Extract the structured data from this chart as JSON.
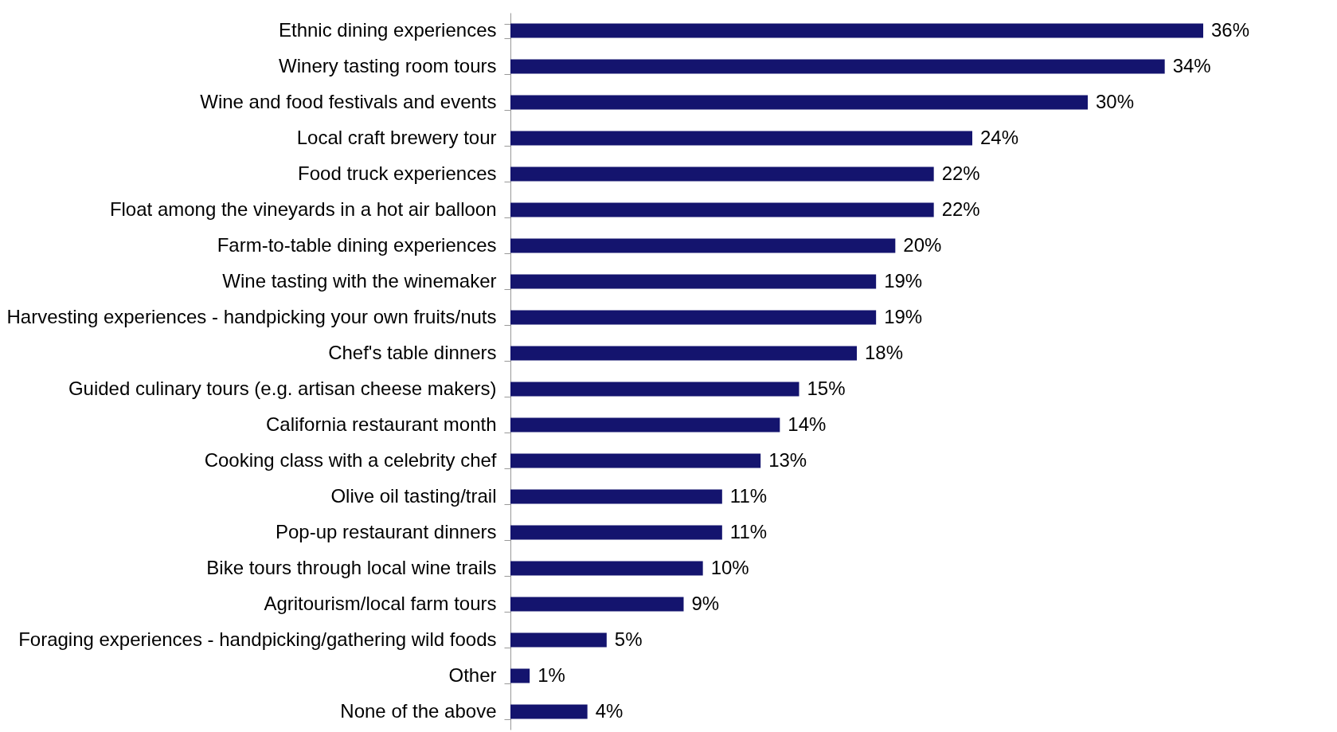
{
  "chart_data": {
    "type": "bar",
    "orientation": "horizontal",
    "color": "#14146e",
    "categories": [
      "Ethnic dining experiences",
      "Winery tasting room tours",
      "Wine and food festivals and events",
      "Local craft brewery tour",
      "Food truck experiences",
      "Float among the vineyards in a hot air balloon",
      "Farm-to-table dining experiences",
      "Wine tasting with the winemaker",
      "Harvesting experiences - handpicking your own fruits/nuts",
      "Chef's table dinners",
      "Guided culinary tours (e.g. artisan cheese makers)",
      "California restaurant month",
      "Cooking class with a celebrity chef",
      "Olive oil tasting/trail",
      "Pop-up restaurant dinners",
      "Bike tours through local wine trails",
      "Agritourism/local farm tours",
      "Foraging experiences - handpicking/gathering wild foods",
      "Other",
      "None of the above"
    ],
    "values": [
      36,
      34,
      30,
      24,
      22,
      22,
      20,
      19,
      19,
      18,
      15,
      14,
      13,
      11,
      11,
      10,
      9,
      5,
      1,
      4
    ],
    "value_labels": [
      "36%",
      "34%",
      "30%",
      "24%",
      "22%",
      "22%",
      "20%",
      "19%",
      "19%",
      "18%",
      "15%",
      "14%",
      "13%",
      "11%",
      "11%",
      "10%",
      "9%",
      "5%",
      "1%",
      "4%"
    ]
  }
}
